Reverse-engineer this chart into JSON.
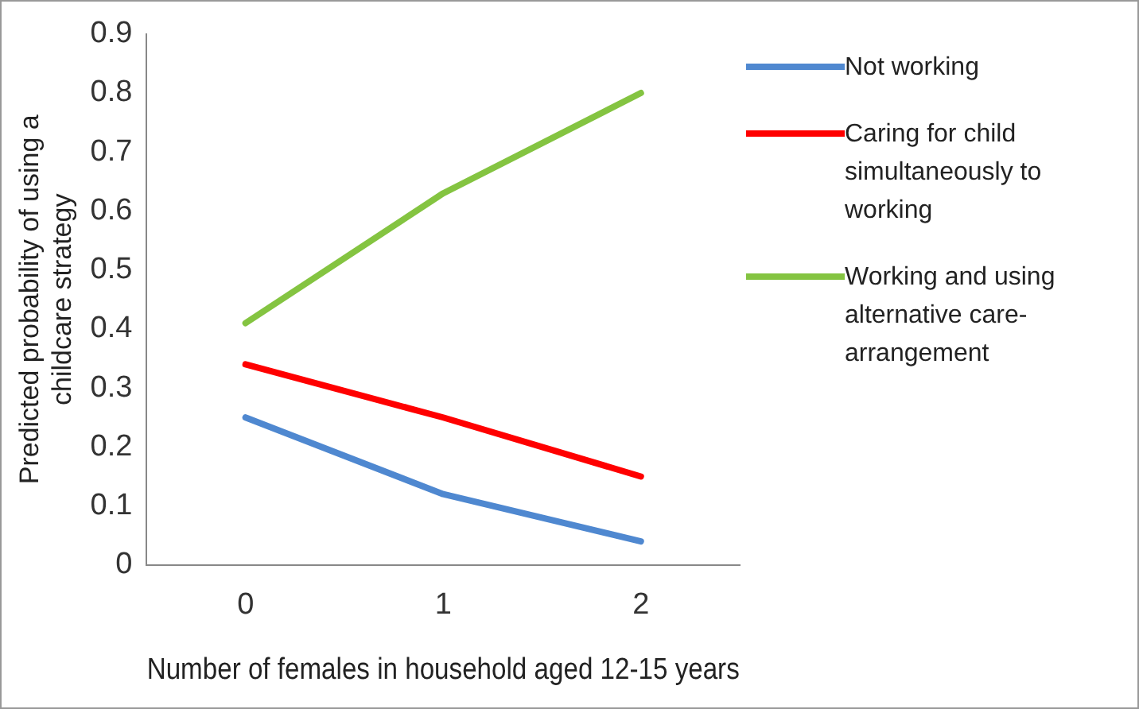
{
  "chart_data": {
    "type": "line",
    "xlabel": "Number of females in household aged 12-15 years",
    "ylabel": "Predicted probability of using a childcare strategy",
    "categories": [
      "0",
      "1",
      "2"
    ],
    "ylim": [
      0,
      0.9
    ],
    "yticks": [
      0,
      0.1,
      0.2,
      0.3,
      0.4,
      0.5,
      0.6,
      0.7,
      0.8,
      0.9
    ],
    "grid": false,
    "legend": "right",
    "marker": "none",
    "series": [
      {
        "name": "Not working",
        "color": "#4f88d0",
        "values": [
          0.25,
          0.12,
          0.04
        ]
      },
      {
        "name": "Caring for child simultaneously to working",
        "color": "#ff0000",
        "values": [
          0.34,
          0.25,
          0.15
        ]
      },
      {
        "name": "Working and using alternative care-arrangement",
        "color": "#84c441",
        "values": [
          0.41,
          0.63,
          0.8
        ]
      }
    ]
  }
}
